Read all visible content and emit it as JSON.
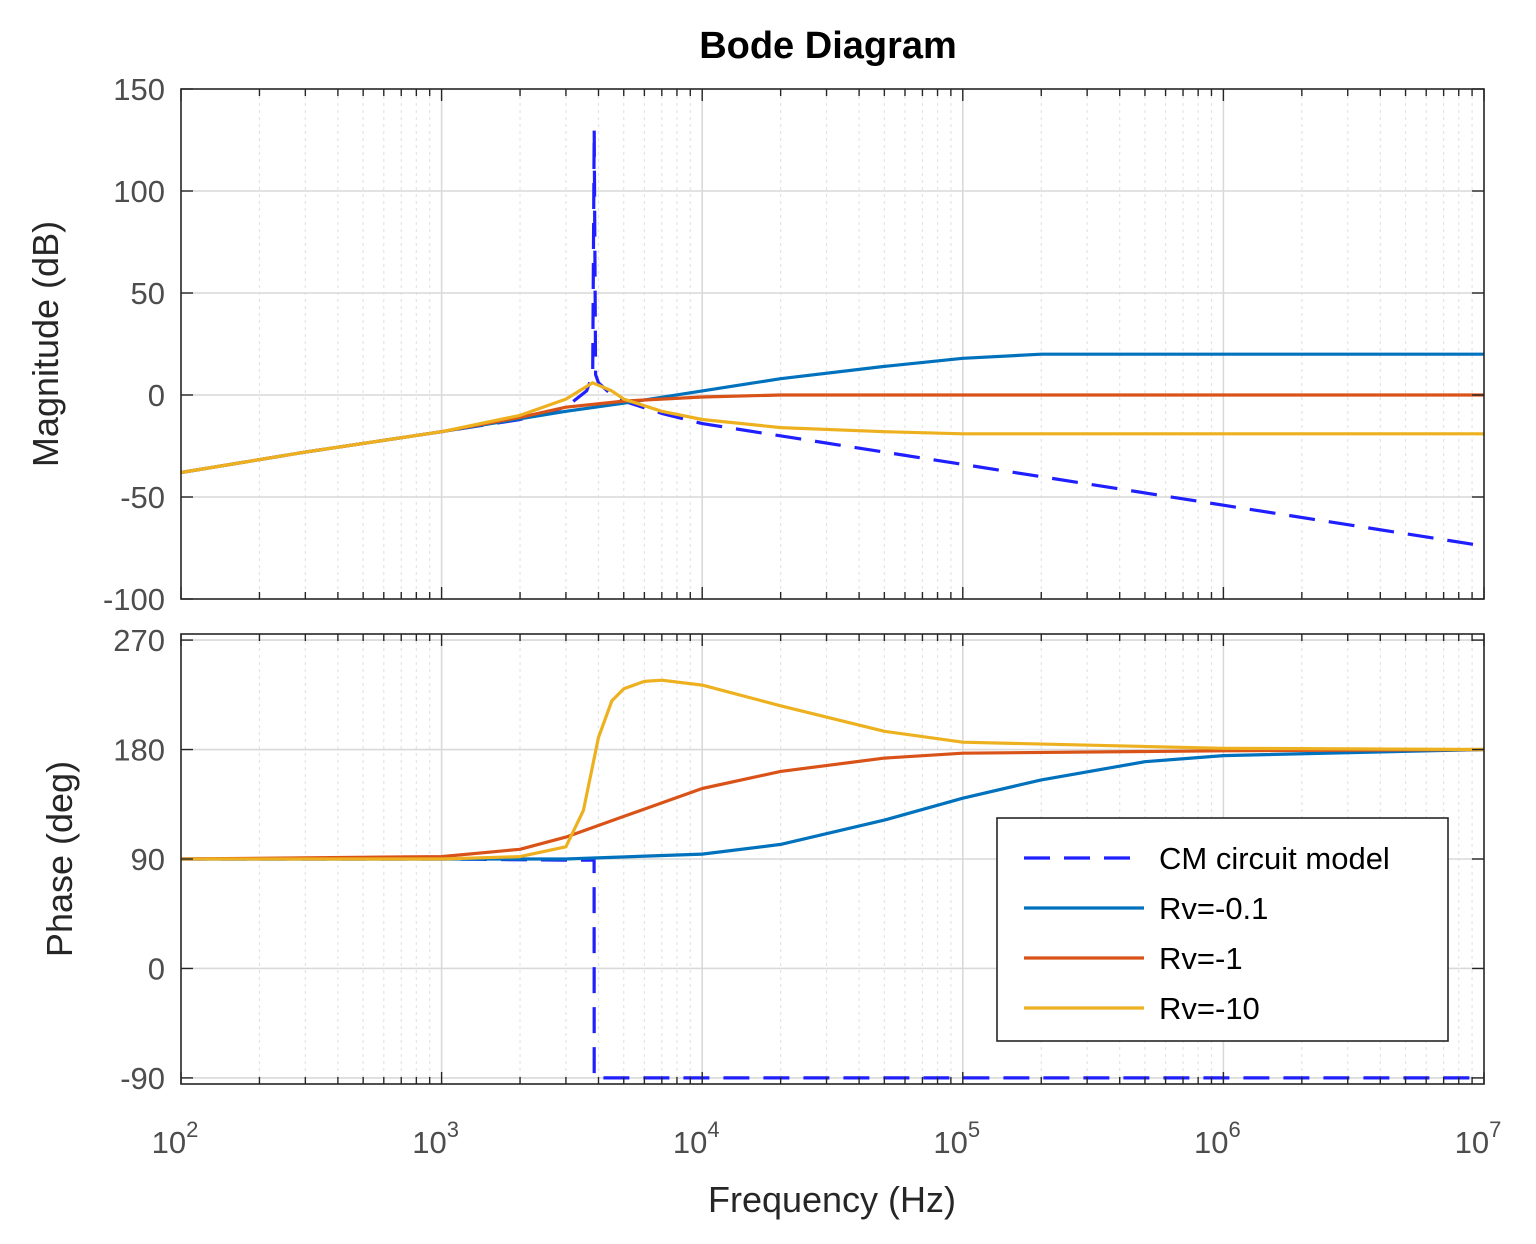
{
  "chart_data": {
    "type": "line",
    "title": "Bode Diagram",
    "xlabel": "Frequency  (Hz)",
    "xscale": "log",
    "xlim": [
      100,
      10000000
    ],
    "x_ticks": [
      {
        "base": "10",
        "exp": "2"
      },
      {
        "base": "10",
        "exp": "3"
      },
      {
        "base": "10",
        "exp": "4"
      },
      {
        "base": "10",
        "exp": "5"
      },
      {
        "base": "10",
        "exp": "6"
      },
      {
        "base": "10",
        "exp": "7"
      }
    ],
    "grid": true,
    "legend_position": "bottom-right of phase panel",
    "legend": [
      "CM circuit model",
      "Rv=-0.1",
      "Rv=-1",
      "Rv=-10"
    ],
    "colors": {
      "CM circuit model": "#1f1fff",
      "Rv=-0.1": "#0072bd",
      "Rv=-1": "#d95319",
      "Rv=-10": "#edb120"
    },
    "magnitude": {
      "ylabel": "Magnitude (dB)",
      "ylim": [
        -100,
        150
      ],
      "y_ticks": [
        "150",
        "100",
        "50",
        "0",
        "-50",
        "-100"
      ],
      "series": [
        {
          "name": "CM circuit model",
          "style": "dashed",
          "x": [
            100,
            300,
            1000,
            2000,
            3000,
            3600,
            3800,
            3850,
            3900,
            4000,
            4500,
            5000,
            7000,
            10000,
            100000,
            1000000,
            10000000
          ],
          "y": [
            -38,
            -28,
            -18,
            -12,
            -6,
            2,
            10,
            130,
            10,
            6,
            0,
            -3,
            -9,
            -14,
            -34,
            -54,
            -74
          ]
        },
        {
          "name": "Rv=-0.1",
          "style": "solid",
          "x": [
            100,
            300,
            1000,
            3000,
            5000,
            10000,
            20000,
            50000,
            100000,
            200000,
            1000000,
            10000000
          ],
          "y": [
            -38,
            -28,
            -18,
            -8,
            -4,
            2,
            8,
            14,
            18,
            20,
            20,
            20
          ]
        },
        {
          "name": "Rv=-1",
          "style": "solid",
          "x": [
            100,
            300,
            1000,
            2000,
            3000,
            5000,
            10000,
            20000,
            100000,
            10000000
          ],
          "y": [
            -38,
            -28,
            -18,
            -11,
            -6,
            -3,
            -1,
            0,
            0,
            0
          ]
        },
        {
          "name": "Rv=-10",
          "style": "solid",
          "x": [
            100,
            300,
            1000,
            2000,
            3000,
            3800,
            4500,
            5000,
            7000,
            10000,
            20000,
            50000,
            100000,
            1000000,
            10000000
          ],
          "y": [
            -38,
            -28,
            -18,
            -10,
            -2,
            6,
            2,
            -2,
            -8,
            -12,
            -16,
            -18,
            -19,
            -19,
            -19
          ]
        }
      ]
    },
    "phase": {
      "ylabel": "Phase (deg)",
      "ylim": [
        -95,
        275
      ],
      "y_ticks": [
        "270",
        "180",
        "90",
        "0",
        "-90"
      ],
      "series": [
        {
          "name": "CM circuit model",
          "style": "dashed",
          "x": [
            100,
            1000,
            3000,
            3849,
            3851,
            5000,
            10000000
          ],
          "y": [
            90,
            90,
            89,
            89,
            -90,
            -90,
            -90
          ]
        },
        {
          "name": "Rv=-0.1",
          "style": "solid",
          "x": [
            100,
            1000,
            3000,
            10000,
            20000,
            50000,
            100000,
            200000,
            500000,
            1000000,
            10000000
          ],
          "y": [
            90,
            90,
            90,
            94,
            102,
            122,
            140,
            155,
            170,
            175,
            180
          ]
        },
        {
          "name": "Rv=-1",
          "style": "solid",
          "x": [
            100,
            1000,
            2000,
            3000,
            5000,
            10000,
            20000,
            50000,
            100000,
            1000000,
            10000000
          ],
          "y": [
            90,
            92,
            98,
            108,
            125,
            148,
            162,
            173,
            177,
            179,
            180
          ]
        },
        {
          "name": "Rv=-10",
          "style": "solid",
          "x": [
            100,
            1000,
            2000,
            3000,
            3500,
            4000,
            4500,
            5000,
            6000,
            7000,
            10000,
            20000,
            50000,
            100000,
            1000000,
            10000000
          ],
          "y": [
            90,
            90,
            92,
            100,
            130,
            190,
            220,
            230,
            236,
            237,
            233,
            216,
            195,
            186,
            181,
            180
          ]
        }
      ]
    }
  }
}
